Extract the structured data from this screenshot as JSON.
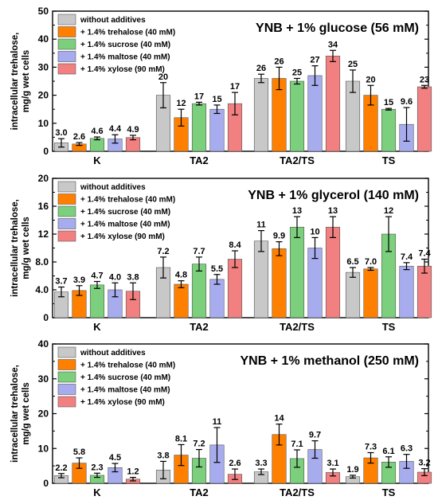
{
  "series_style": [
    {
      "color": "#c8c8c8"
    },
    {
      "color": "#ff8000"
    },
    {
      "color": "#7ccf7c"
    },
    {
      "color": "#a7acee"
    },
    {
      "color": "#f28080"
    }
  ],
  "chart_data": [
    {
      "type": "bar",
      "title": "YNB + 1% glucose (56 mM)",
      "ylabel_line1": "intracellular trehalose,",
      "ylabel_line2": "mg/g wet cells",
      "ylim": [
        0,
        50
      ],
      "yticks": [
        "0",
        "10",
        "20",
        "30",
        "40",
        "50"
      ],
      "categories": [
        "K",
        "TA2",
        "TA2/TS",
        "TS"
      ],
      "series": [
        {
          "name": "without additives",
          "values": [
            3.0,
            20,
            26,
            25
          ],
          "errors": [
            1.5,
            4.5,
            1.5,
            4.0
          ],
          "labels": [
            "3.0",
            "20",
            "26",
            "25"
          ]
        },
        {
          "name": "+ 1.4% trehalose (40 mM)",
          "values": [
            2.6,
            12,
            26,
            20
          ],
          "errors": [
            0.5,
            3.0,
            4.0,
            3.5
          ],
          "labels": [
            "2.6",
            "12",
            "26",
            "20"
          ]
        },
        {
          "name": "+ 1.4% sucrose (40 mM)",
          "values": [
            4.6,
            17,
            25,
            15
          ],
          "errors": [
            0.5,
            0.5,
            1.0,
            0.3
          ],
          "labels": [
            "4.6",
            "17",
            "25",
            "15"
          ]
        },
        {
          "name": "+ 1.4% maltose (40 mM)",
          "values": [
            4.4,
            15,
            27,
            9.6
          ],
          "errors": [
            1.5,
            1.5,
            3.5,
            6.0
          ],
          "labels": [
            "4.4",
            "15",
            "27",
            "9.6"
          ]
        },
        {
          "name": "+ 1.4% xylose (90 mM)",
          "values": [
            4.9,
            17,
            34,
            23
          ],
          "errors": [
            0.8,
            4.0,
            2.0,
            0.5
          ],
          "labels": [
            "4.9",
            "17",
            "34",
            "23"
          ]
        }
      ]
    },
    {
      "type": "bar",
      "title": "YNB + 1% glycerol (140 mM)",
      "ylabel_line1": "intracellular trehalose,",
      "ylabel_line2": "mg/g wet cells",
      "ylim": [
        0,
        20
      ],
      "yticks": [
        "0",
        "4.0",
        "8.0",
        "12",
        "16",
        "20"
      ],
      "categories": [
        "K",
        "TA2",
        "TA2/TS",
        "TS"
      ],
      "series": [
        {
          "name": "without additives",
          "values": [
            3.7,
            7.2,
            11,
            6.5
          ],
          "errors": [
            0.7,
            1.5,
            1.5,
            0.7
          ],
          "labels": [
            "3.7",
            "7.2",
            "11",
            "6.5"
          ]
        },
        {
          "name": "+ 1.4% trehalose (40 mM)",
          "values": [
            3.9,
            4.8,
            9.9,
            7.0
          ],
          "errors": [
            0.7,
            0.5,
            1.0,
            0.2
          ],
          "labels": [
            "3.9",
            "4.8",
            "9.9",
            "7.0"
          ]
        },
        {
          "name": "+ 1.4% sucrose (40 mM)",
          "values": [
            4.7,
            7.7,
            13,
            12
          ],
          "errors": [
            0.5,
            1.0,
            1.5,
            2.5
          ],
          "labels": [
            "4.7",
            "7.7",
            "13",
            "12"
          ]
        },
        {
          "name": "+ 1.4% maltose (40 mM)",
          "values": [
            4.0,
            5.5,
            10,
            7.4
          ],
          "errors": [
            1.0,
            0.7,
            1.5,
            0.5
          ],
          "labels": [
            "4.0",
            "5.5",
            "10",
            "7.4"
          ]
        },
        {
          "name": "+ 1.4% xylose (90 mM)",
          "values": [
            3.8,
            8.4,
            13,
            7.4
          ],
          "errors": [
            1.2,
            1.2,
            1.5,
            1.0
          ],
          "labels": [
            "3.8",
            "8.4",
            "13",
            "7.4"
          ]
        }
      ]
    },
    {
      "type": "bar",
      "title": "YNB + 1% methanol (250 mM)",
      "ylabel_line1": "intracellular trehalose,",
      "ylabel_line2": "mg/g wet cells",
      "ylim": [
        0,
        40
      ],
      "yticks": [
        "0",
        "10",
        "20",
        "30",
        "40"
      ],
      "categories": [
        "K",
        "TA2",
        "TA2/TS",
        "TS"
      ],
      "series": [
        {
          "name": "without additives",
          "values": [
            2.2,
            3.8,
            3.3,
            1.9
          ],
          "errors": [
            0.6,
            2.5,
            0.8,
            0.4
          ],
          "labels": [
            "2.2",
            "3.8",
            "3.3",
            "1.9"
          ]
        },
        {
          "name": "+ 1.4% trehalose (40 mM)",
          "values": [
            5.8,
            8.1,
            14,
            7.3
          ],
          "errors": [
            1.5,
            3.0,
            3.0,
            1.5
          ],
          "labels": [
            "5.8",
            "8.1",
            "14",
            "7.3"
          ]
        },
        {
          "name": "+ 1.4% sucrose (40 mM)",
          "values": [
            2.3,
            7.2,
            7.1,
            6.1
          ],
          "errors": [
            0.6,
            2.5,
            2.5,
            1.5
          ],
          "labels": [
            "2.3",
            "7.2",
            "7.1",
            "6.1"
          ]
        },
        {
          "name": "+ 1.4% maltose (40 mM)",
          "values": [
            4.5,
            11,
            9.7,
            6.3
          ],
          "errors": [
            1.2,
            5.0,
            2.5,
            2.0
          ],
          "labels": [
            "4.5",
            "11",
            "9.7",
            "6.3"
          ]
        },
        {
          "name": "+ 1.4% xylose (90 mM)",
          "values": [
            1.2,
            2.6,
            3.1,
            3.2
          ],
          "errors": [
            0.5,
            1.5,
            1.0,
            1.0
          ],
          "labels": [
            "1.2",
            "2.6",
            "3.1",
            "3.2"
          ]
        }
      ]
    }
  ]
}
